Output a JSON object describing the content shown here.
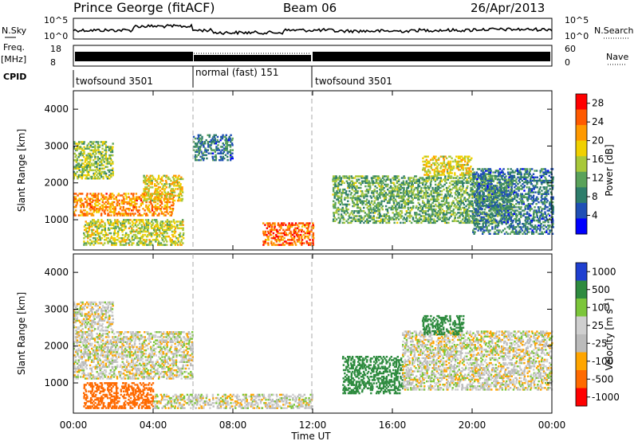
{
  "header": {
    "station": "Prince George (fitACF)",
    "beam": "Beam 06",
    "date": "26/Apr/2013"
  },
  "noise_panel": {
    "left_label": "N.Sky",
    "right_label": "N.Search",
    "left_ticks": [
      "10^5",
      "10^0"
    ],
    "right_ticks": [
      "10^5",
      "10^0"
    ]
  },
  "freq_panel": {
    "left_label": "Freq.",
    "left_unit": "[MHz]",
    "right_label": "Nave",
    "left_ticks": [
      "18",
      "8"
    ],
    "right_ticks": [
      "60",
      "0"
    ]
  },
  "cpid": {
    "label": "CPID",
    "segments": [
      {
        "name": "twofsound 3501",
        "start_h": 0,
        "end_h": 6
      },
      {
        "name": "normal (fast) 151",
        "start_h": 6,
        "end_h": 12
      },
      {
        "name": "twofsound 3501",
        "start_h": 12,
        "end_h": 24
      }
    ]
  },
  "x_axis": {
    "label": "Time UT",
    "ticks": [
      "00:00",
      "04:00",
      "08:00",
      "12:00",
      "16:00",
      "20:00",
      "00:00"
    ]
  },
  "colors": {
    "power_scale": [
      "#0000ff",
      "#1f4fb5",
      "#2e7d6b",
      "#5aa25a",
      "#a8c83a",
      "#f0d000",
      "#ff9900",
      "#ff5a00",
      "#ff0000"
    ],
    "velocity_scale": [
      "#ff0000",
      "#ff6a00",
      "#ffa500",
      "#bbbbbb",
      "#cfcfcf",
      "#7cc63a",
      "#2e8b3f",
      "#1f3fd0"
    ]
  },
  "chart_data": [
    {
      "type": "heatmap",
      "panel": "power",
      "ylabel": "Slant Range [km]",
      "xlabel": "Time UT",
      "xlim_hours": [
        0,
        24
      ],
      "ylim_km": [
        180,
        4500
      ],
      "y_ticks": [
        "1000",
        "2000",
        "3000",
        "4000"
      ],
      "colorbar_label": "Power [dB]",
      "colorbar_ticks": [
        "4",
        "8",
        "12",
        "16",
        "20",
        "24",
        "28"
      ],
      "colorbar_range": [
        0,
        30
      ],
      "features": [
        {
          "t0": 0.0,
          "t1": 5.0,
          "r0": 1100,
          "r1": 1700,
          "level": 22
        },
        {
          "t0": 0.0,
          "t1": 2.0,
          "r0": 2100,
          "r1": 3100,
          "level": 14
        },
        {
          "t0": 0.5,
          "t1": 5.5,
          "r0": 300,
          "r1": 1000,
          "level": 16
        },
        {
          "t0": 3.5,
          "t1": 5.5,
          "r0": 1500,
          "r1": 2200,
          "level": 18
        },
        {
          "t0": 6.0,
          "t1": 8.0,
          "r0": 2600,
          "r1": 3300,
          "level": 8
        },
        {
          "t0": 9.5,
          "t1": 12.0,
          "r0": 300,
          "r1": 900,
          "level": 24
        },
        {
          "t0": 13.0,
          "t1": 22.0,
          "r0": 900,
          "r1": 2200,
          "level": 12
        },
        {
          "t0": 17.5,
          "t1": 20.0,
          "r0": 2200,
          "r1": 2700,
          "level": 18
        },
        {
          "t0": 20.0,
          "t1": 24.0,
          "r0": 600,
          "r1": 2400,
          "level": 8
        }
      ]
    },
    {
      "type": "heatmap",
      "panel": "velocity",
      "ylabel": "Slant Range [km]",
      "xlabel": "Time UT",
      "xlim_hours": [
        0,
        24
      ],
      "ylim_km": [
        180,
        4500
      ],
      "y_ticks": [
        "1000",
        "2000",
        "3000",
        "4000"
      ],
      "colorbar_label": "Velocity [m s^-1]",
      "colorbar_ticks": [
        "1000",
        "500",
        "100",
        "25",
        "-25",
        "-100",
        "-500",
        "-1000"
      ],
      "features": [
        {
          "t0": 0.0,
          "t1": 6.0,
          "r0": 1100,
          "r1": 2400,
          "value": 0
        },
        {
          "t0": 0.0,
          "t1": 2.0,
          "r0": 2400,
          "r1": 3200,
          "value": 0
        },
        {
          "t0": 0.5,
          "t1": 4.0,
          "r0": 300,
          "r1": 1000,
          "value": -300
        },
        {
          "t0": 4.0,
          "t1": 12.0,
          "r0": 300,
          "r1": 700,
          "value": 0
        },
        {
          "t0": 13.5,
          "t1": 16.5,
          "r0": 700,
          "r1": 1700,
          "value": 200
        },
        {
          "t0": 16.5,
          "t1": 24.0,
          "r0": 800,
          "r1": 2400,
          "value": 0
        },
        {
          "t0": 17.5,
          "t1": 19.5,
          "r0": 2300,
          "r1": 2800,
          "value": 200
        }
      ]
    }
  ]
}
